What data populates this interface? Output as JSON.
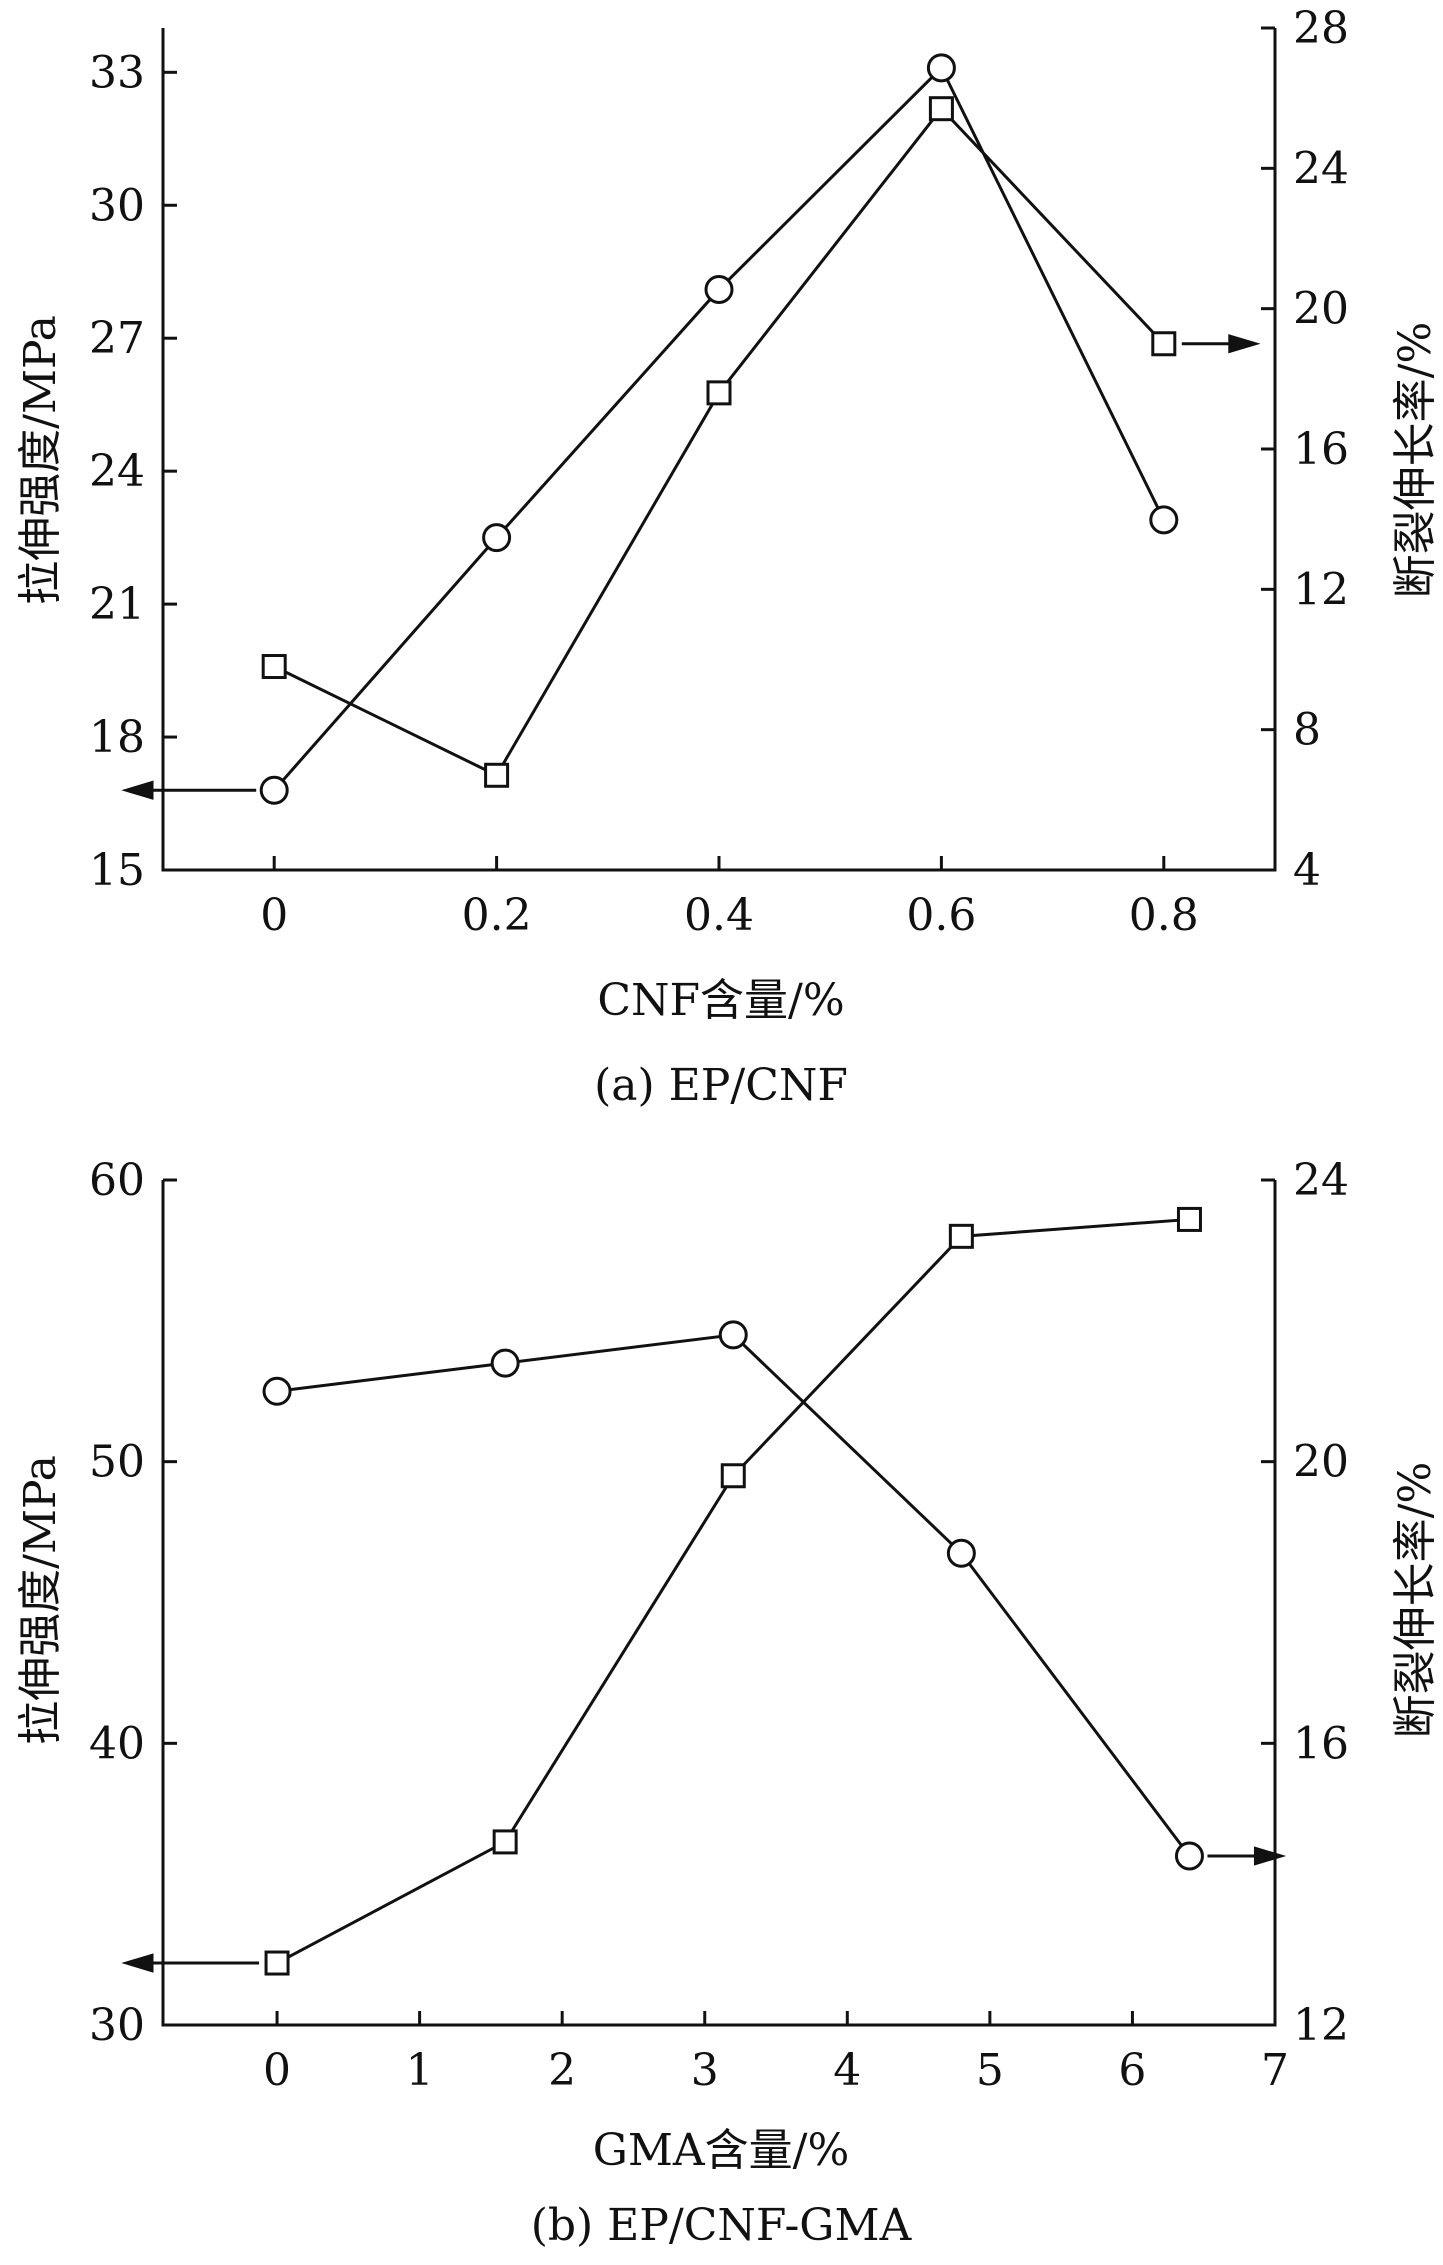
{
  "chart_data": [
    {
      "type": "line",
      "caption": "(a) EP/CNF",
      "xlabel": "CNF含量/%",
      "ylabel_left": "拉伸强度/MPa",
      "ylabel_right": "断裂伸长率/%",
      "xlim": [
        -0.1,
        0.9
      ],
      "ylim_left": [
        15,
        34
      ],
      "ylim_right": [
        4,
        28
      ],
      "xticks": [
        0,
        0.2,
        0.4,
        0.6,
        0.8
      ],
      "xtick_labels": [
        "0",
        "0.2",
        "0.4",
        "0.6",
        "0.8"
      ],
      "yticks_left": [
        15,
        18,
        21,
        24,
        27,
        30,
        33
      ],
      "ytick_labels_left": [
        "15",
        "18",
        "21",
        "24",
        "27",
        "30",
        "33"
      ],
      "yticks_right": [
        4,
        8,
        12,
        16,
        20,
        24,
        28
      ],
      "ytick_labels_right": [
        "4",
        "8",
        "12",
        "16",
        "20",
        "24",
        "28"
      ],
      "grid": false,
      "series": [
        {
          "marker": "circle",
          "axis": "left",
          "x": [
            0,
            0.2,
            0.4,
            0.6,
            0.8
          ],
          "values": [
            16.8,
            22.5,
            28.1,
            33.1,
            22.9
          ]
        },
        {
          "marker": "square",
          "axis": "right",
          "x": [
            0,
            0.2,
            0.4,
            0.6,
            0.8
          ],
          "values": [
            9.8,
            6.7,
            17.6,
            25.7,
            19.0
          ]
        }
      ]
    },
    {
      "type": "line",
      "caption": "(b) EP/CNF-GMA",
      "xlabel": "GMA含量/%",
      "ylabel_left": "拉伸强度/MPa",
      "ylabel_right": "断裂伸长率/%",
      "xlim": [
        -0.8,
        7
      ],
      "ylim_left": [
        30,
        60
      ],
      "ylim_right": [
        12,
        24
      ],
      "xticks": [
        0,
        1,
        2,
        3,
        4,
        5,
        6,
        7
      ],
      "xtick_labels": [
        "0",
        "1",
        "2",
        "3",
        "4",
        "5",
        "6",
        "7"
      ],
      "yticks_left": [
        30,
        40,
        50,
        60
      ],
      "ytick_labels_left": [
        "30",
        "40",
        "50",
        "60"
      ],
      "yticks_right": [
        12,
        16,
        20,
        24
      ],
      "ytick_labels_right": [
        "12",
        "16",
        "20",
        "24"
      ],
      "grid": false,
      "series": [
        {
          "marker": "circle",
          "axis": "right",
          "x": [
            0,
            1.6,
            3.2,
            4.8,
            6.4
          ],
          "values": [
            21.0,
            21.4,
            21.8,
            18.7,
            14.4
          ]
        },
        {
          "marker": "square",
          "axis": "left",
          "x": [
            0,
            1.6,
            3.2,
            4.8,
            6.4
          ],
          "values": [
            32.2,
            36.5,
            49.5,
            58.0,
            58.6
          ]
        }
      ]
    }
  ]
}
